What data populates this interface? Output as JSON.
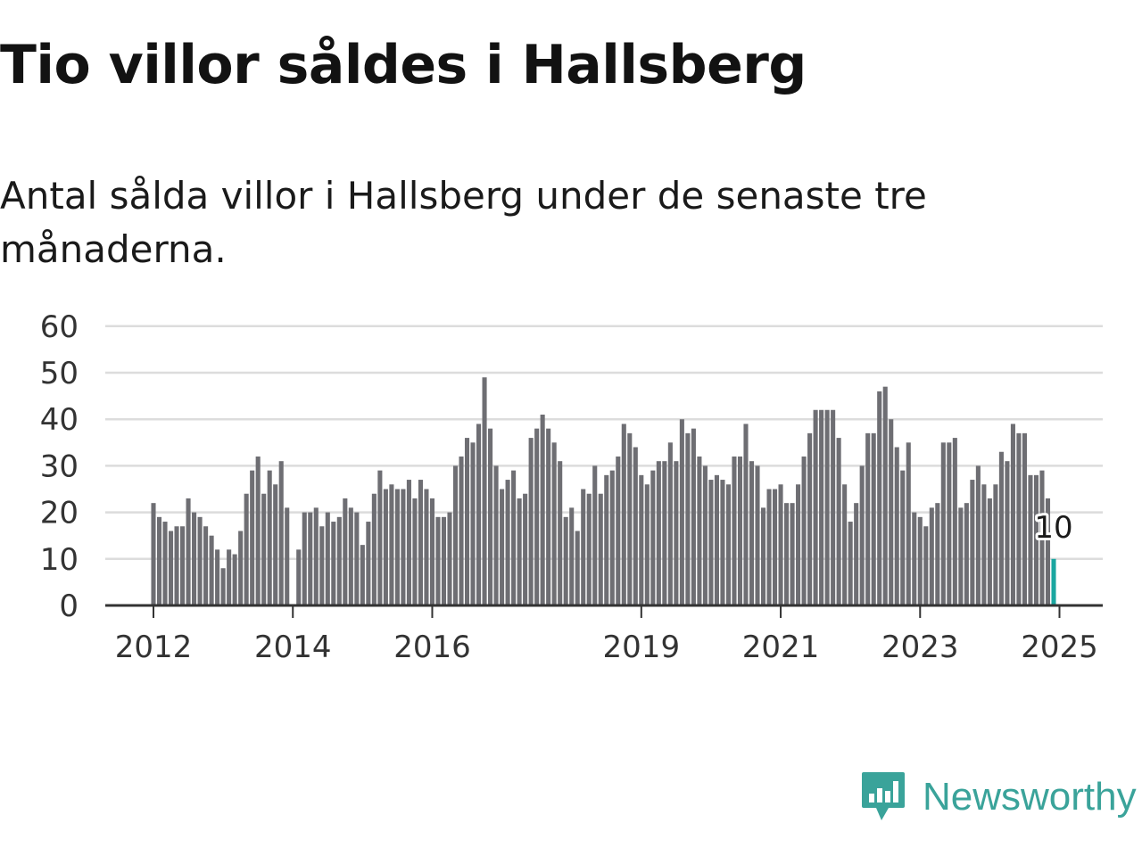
{
  "header": {
    "title": "Tio villor såldes i Hallsberg",
    "subtitle": "Antal sålda villor i Hallsberg under de senaste tre månaderna."
  },
  "brand": {
    "name": "Newsworthy",
    "icon": "newsworthy-logo-icon",
    "color": "#3aa39a"
  },
  "chart_data": {
    "type": "bar",
    "title": "Tio villor såldes i Hallsberg",
    "subtitle": "Antal sålda villor i Hallsberg under de senaste tre månaderna.",
    "xlabel": "",
    "ylabel": "",
    "ylim": [
      0,
      60
    ],
    "yticks": [
      0,
      10,
      20,
      30,
      40,
      50,
      60
    ],
    "xticks": [
      "2012",
      "2014",
      "2016",
      "2019",
      "2021",
      "2023",
      "2025"
    ],
    "grid": true,
    "legend": "none",
    "bar_color": "#6e6e73",
    "highlight_color": "#1aa6a0",
    "annotation": {
      "label": "10",
      "value": 10
    },
    "start": "2012-01",
    "end": "2025-01",
    "values": [
      22,
      19,
      18,
      16,
      17,
      17,
      23,
      20,
      19,
      17,
      15,
      12,
      8,
      12,
      11,
      16,
      24,
      29,
      32,
      24,
      29,
      26,
      31,
      21,
      null,
      12,
      20,
      20,
      21,
      17,
      20,
      18,
      19,
      23,
      21,
      20,
      13,
      18,
      24,
      29,
      25,
      26,
      25,
      25,
      27,
      23,
      27,
      25,
      23,
      19,
      19,
      20,
      30,
      32,
      36,
      35,
      39,
      49,
      38,
      30,
      25,
      27,
      29,
      23,
      24,
      36,
      38,
      41,
      38,
      35,
      31,
      19,
      21,
      16,
      25,
      24,
      30,
      24,
      28,
      29,
      32,
      39,
      37,
      34,
      28,
      26,
      29,
      31,
      31,
      35,
      31,
      40,
      37,
      38,
      32,
      30,
      27,
      28,
      27,
      26,
      32,
      32,
      39,
      31,
      30,
      21,
      25,
      25,
      26,
      22,
      22,
      26,
      32,
      37,
      42,
      42,
      42,
      42,
      36,
      26,
      18,
      22,
      30,
      37,
      37,
      46,
      47,
      40,
      34,
      29,
      35,
      20,
      19,
      17,
      21,
      22,
      35,
      35,
      36,
      21,
      22,
      27,
      30,
      26,
      23,
      26,
      33,
      31,
      39,
      37,
      37,
      28,
      28,
      29,
      23,
      10
    ]
  }
}
